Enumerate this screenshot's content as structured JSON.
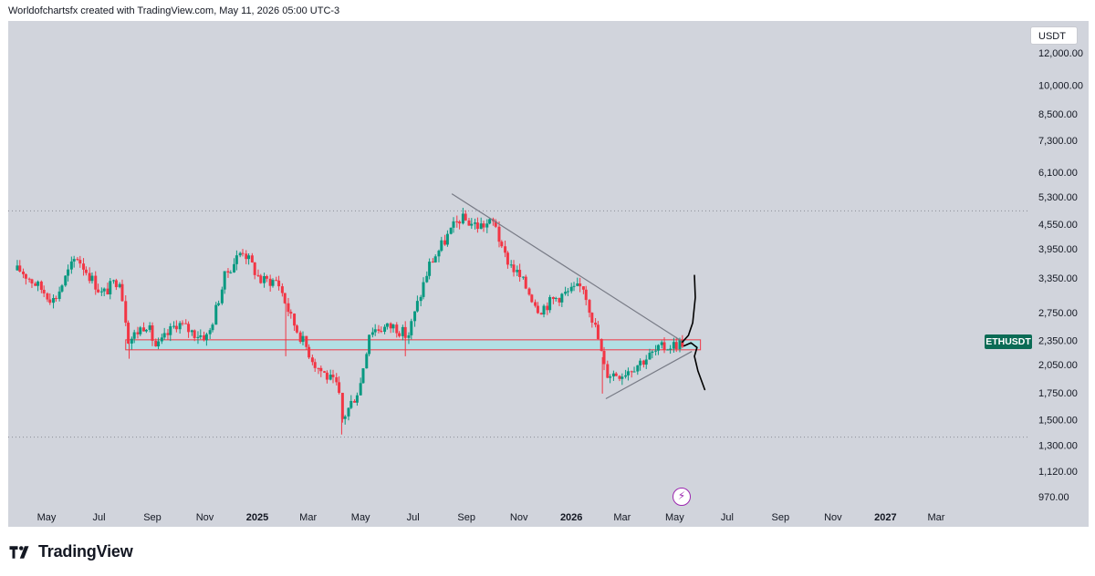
{
  "header": {
    "text": "Worldofchartsfx created with TradingView.com, May 11, 2026 05:00 UTC-3"
  },
  "currency": "USDT",
  "symbol_label": "ETHUSDT",
  "brand": "TradingView",
  "colors": {
    "bull": "#089981",
    "bear": "#f23645",
    "zone_fill": "#b2dfe4",
    "zone_border": "#f23645",
    "badge": "#0b6b55",
    "trendline": "#787b86",
    "drawing": "#000000",
    "event_icon": "#9c27b0"
  },
  "icons": {
    "brand_logo": "tradingview-logo-icon",
    "event": "lightning-icon"
  },
  "chart_data": {
    "type": "candlestick",
    "title": "",
    "symbol": "ETHUSDT",
    "interval": "weekly",
    "y_scale": "log",
    "y_range": [
      900,
      14000
    ],
    "y_ticks": [
      "12,000.00",
      "10,000.00",
      "8,500.00",
      "7,300.00",
      "6,100.00",
      "5,300.00",
      "4,550.00",
      "3,950.00",
      "3,350.00",
      "2,750.00",
      "2,350.00",
      "2,050.00",
      "1,750.00",
      "1,500.00",
      "1,300.00",
      "1,120.00",
      "970.00"
    ],
    "x_ticks": [
      {
        "label": "May",
        "date": "2024-05-01"
      },
      {
        "label": "Jul",
        "date": "2024-07-01"
      },
      {
        "label": "Sep",
        "date": "2024-09-01"
      },
      {
        "label": "Nov",
        "date": "2024-11-01"
      },
      {
        "label": "2025",
        "date": "2025-01-01",
        "year": true
      },
      {
        "label": "Mar",
        "date": "2025-03-01"
      },
      {
        "label": "May",
        "date": "2025-05-01"
      },
      {
        "label": "Jul",
        "date": "2025-07-01"
      },
      {
        "label": "Sep",
        "date": "2025-09-01"
      },
      {
        "label": "Nov",
        "date": "2025-11-01"
      },
      {
        "label": "2026",
        "date": "2026-01-01",
        "year": true
      },
      {
        "label": "Mar",
        "date": "2026-03-01"
      },
      {
        "label": "May",
        "date": "2026-05-01"
      },
      {
        "label": "Jul",
        "date": "2026-07-01"
      },
      {
        "label": "Sep",
        "date": "2026-09-01"
      },
      {
        "label": "Nov",
        "date": "2026-11-01"
      },
      {
        "label": "2027",
        "date": "2027-01-01",
        "year": true
      },
      {
        "label": "Mar",
        "date": "2027-03-01"
      }
    ],
    "anchors": [
      {
        "date": "2024-04-01",
        "price": 3500
      },
      {
        "date": "2024-05-10",
        "price": 2950
      },
      {
        "date": "2024-06-05",
        "price": 3800
      },
      {
        "date": "2024-07-05",
        "price": 3050
      },
      {
        "date": "2024-07-25",
        "price": 3350
      },
      {
        "date": "2024-08-05",
        "price": 2350
      },
      {
        "date": "2024-08-25",
        "price": 2600
      },
      {
        "date": "2024-09-06",
        "price": 2250
      },
      {
        "date": "2024-09-30",
        "price": 2600
      },
      {
        "date": "2024-10-20",
        "price": 2450
      },
      {
        "date": "2024-11-05",
        "price": 2400
      },
      {
        "date": "2024-11-25",
        "price": 3400
      },
      {
        "date": "2024-12-15",
        "price": 3950
      },
      {
        "date": "2025-01-05",
        "price": 3300
      },
      {
        "date": "2025-01-25",
        "price": 3300
      },
      {
        "date": "2025-02-10",
        "price": 2650
      },
      {
        "date": "2025-03-10",
        "price": 2050
      },
      {
        "date": "2025-04-05",
        "price": 1800
      },
      {
        "date": "2025-04-10",
        "price": 1500
      },
      {
        "date": "2025-04-30",
        "price": 1800
      },
      {
        "date": "2025-05-12",
        "price": 2500
      },
      {
        "date": "2025-06-10",
        "price": 2550
      },
      {
        "date": "2025-06-25",
        "price": 2400
      },
      {
        "date": "2025-07-20",
        "price": 3600
      },
      {
        "date": "2025-08-15",
        "price": 4400
      },
      {
        "date": "2025-08-25",
        "price": 4700
      },
      {
        "date": "2025-09-15",
        "price": 4500
      },
      {
        "date": "2025-10-05",
        "price": 4600
      },
      {
        "date": "2025-10-12",
        "price": 3900
      },
      {
        "date": "2025-11-05",
        "price": 3300
      },
      {
        "date": "2025-11-25",
        "price": 2800
      },
      {
        "date": "2025-12-15",
        "price": 3000
      },
      {
        "date": "2026-01-15",
        "price": 3200
      },
      {
        "date": "2026-02-01",
        "price": 2400
      },
      {
        "date": "2026-02-10",
        "price": 1950
      },
      {
        "date": "2026-03-01",
        "price": 1950
      },
      {
        "date": "2026-03-25",
        "price": 2100
      },
      {
        "date": "2026-04-15",
        "price": 2250
      },
      {
        "date": "2026-05-11",
        "price": 2330
      }
    ],
    "lows": [
      {
        "date": "2024-08-05",
        "price": 2120
      },
      {
        "date": "2025-02-03",
        "price": 2150
      },
      {
        "date": "2025-04-09",
        "price": 1380
      },
      {
        "date": "2025-06-22",
        "price": 2150
      },
      {
        "date": "2026-02-06",
        "price": 1740
      }
    ],
    "annotations": {
      "support_zone": {
        "from": "2024-08-01",
        "to": "2026-05-31",
        "low": 2230,
        "high": 2360
      },
      "descending_trendline": {
        "from": {
          "date": "2025-08-15",
          "price": 5400
        },
        "to": {
          "date": "2026-05-11",
          "price": 2330
        }
      },
      "ascending_trendline": {
        "from": {
          "date": "2026-02-10",
          "price": 1690
        },
        "to": {
          "date": "2026-05-21",
          "price": 2210
        }
      },
      "dotted_levels": [
        4900,
        1360
      ]
    }
  }
}
